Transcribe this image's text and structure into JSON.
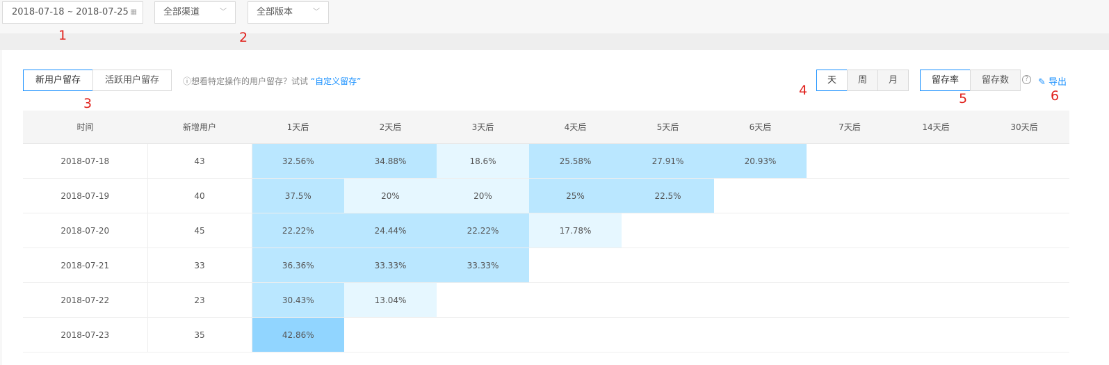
{
  "filters": {
    "date_start": "2018-07-18",
    "date_separator": "~",
    "date_end": "2018-07-25",
    "channel": "全部渠道",
    "version": "全部版本"
  },
  "annotations": [
    "1",
    "2",
    "3",
    "4",
    "5",
    "6"
  ],
  "tabs": [
    "新用户留存",
    "活跃用户留存"
  ],
  "hint": {
    "text": "想看特定操作的用户留存？试试",
    "link": "“自定义留存”"
  },
  "period_buttons": [
    "天",
    "周",
    "月"
  ],
  "metric_buttons": [
    "留存率",
    "留存数"
  ],
  "export": "导出",
  "table": {
    "headers": [
      "时间",
      "新增用户",
      "1天后",
      "2天后",
      "3天后",
      "4天后",
      "5天后",
      "6天后",
      "7天后",
      "14天后",
      "30天后"
    ],
    "rows": [
      {
        "date": "2018-07-18",
        "new_users": "43",
        "cells": [
          {
            "text": "32.56%",
            "color": "#bae7ff"
          },
          {
            "text": "34.88%",
            "color": "#bae7ff"
          },
          {
            "text": "18.6%",
            "color": "#e6f7ff"
          },
          {
            "text": "25.58%",
            "color": "#bae7ff"
          },
          {
            "text": "27.91%",
            "color": "#bae7ff"
          },
          {
            "text": "20.93%",
            "color": "#bae7ff"
          },
          null,
          null,
          null
        ]
      },
      {
        "date": "2018-07-19",
        "new_users": "40",
        "cells": [
          {
            "text": "37.5%",
            "color": "#bae7ff"
          },
          {
            "text": "20%",
            "color": "#e6f7ff"
          },
          {
            "text": "20%",
            "color": "#e6f7ff"
          },
          {
            "text": "25%",
            "color": "#bae7ff"
          },
          {
            "text": "22.5%",
            "color": "#bae7ff"
          },
          null,
          null,
          null,
          null
        ]
      },
      {
        "date": "2018-07-20",
        "new_users": "45",
        "cells": [
          {
            "text": "22.22%",
            "color": "#bae7ff"
          },
          {
            "text": "24.44%",
            "color": "#bae7ff"
          },
          {
            "text": "22.22%",
            "color": "#bae7ff"
          },
          {
            "text": "17.78%",
            "color": "#e6f7ff"
          },
          null,
          null,
          null,
          null,
          null
        ]
      },
      {
        "date": "2018-07-21",
        "new_users": "33",
        "cells": [
          {
            "text": "36.36%",
            "color": "#bae7ff"
          },
          {
            "text": "33.33%",
            "color": "#bae7ff"
          },
          {
            "text": "33.33%",
            "color": "#bae7ff"
          },
          null,
          null,
          null,
          null,
          null,
          null
        ]
      },
      {
        "date": "2018-07-22",
        "new_users": "23",
        "cells": [
          {
            "text": "30.43%",
            "color": "#bae7ff"
          },
          {
            "text": "13.04%",
            "color": "#e6f7ff"
          },
          null,
          null,
          null,
          null,
          null,
          null,
          null
        ]
      },
      {
        "date": "2018-07-23",
        "new_users": "35",
        "cells": [
          {
            "text": "42.86%",
            "color": "#91d5ff"
          },
          null,
          null,
          null,
          null,
          null,
          null,
          null,
          null
        ]
      }
    ]
  }
}
